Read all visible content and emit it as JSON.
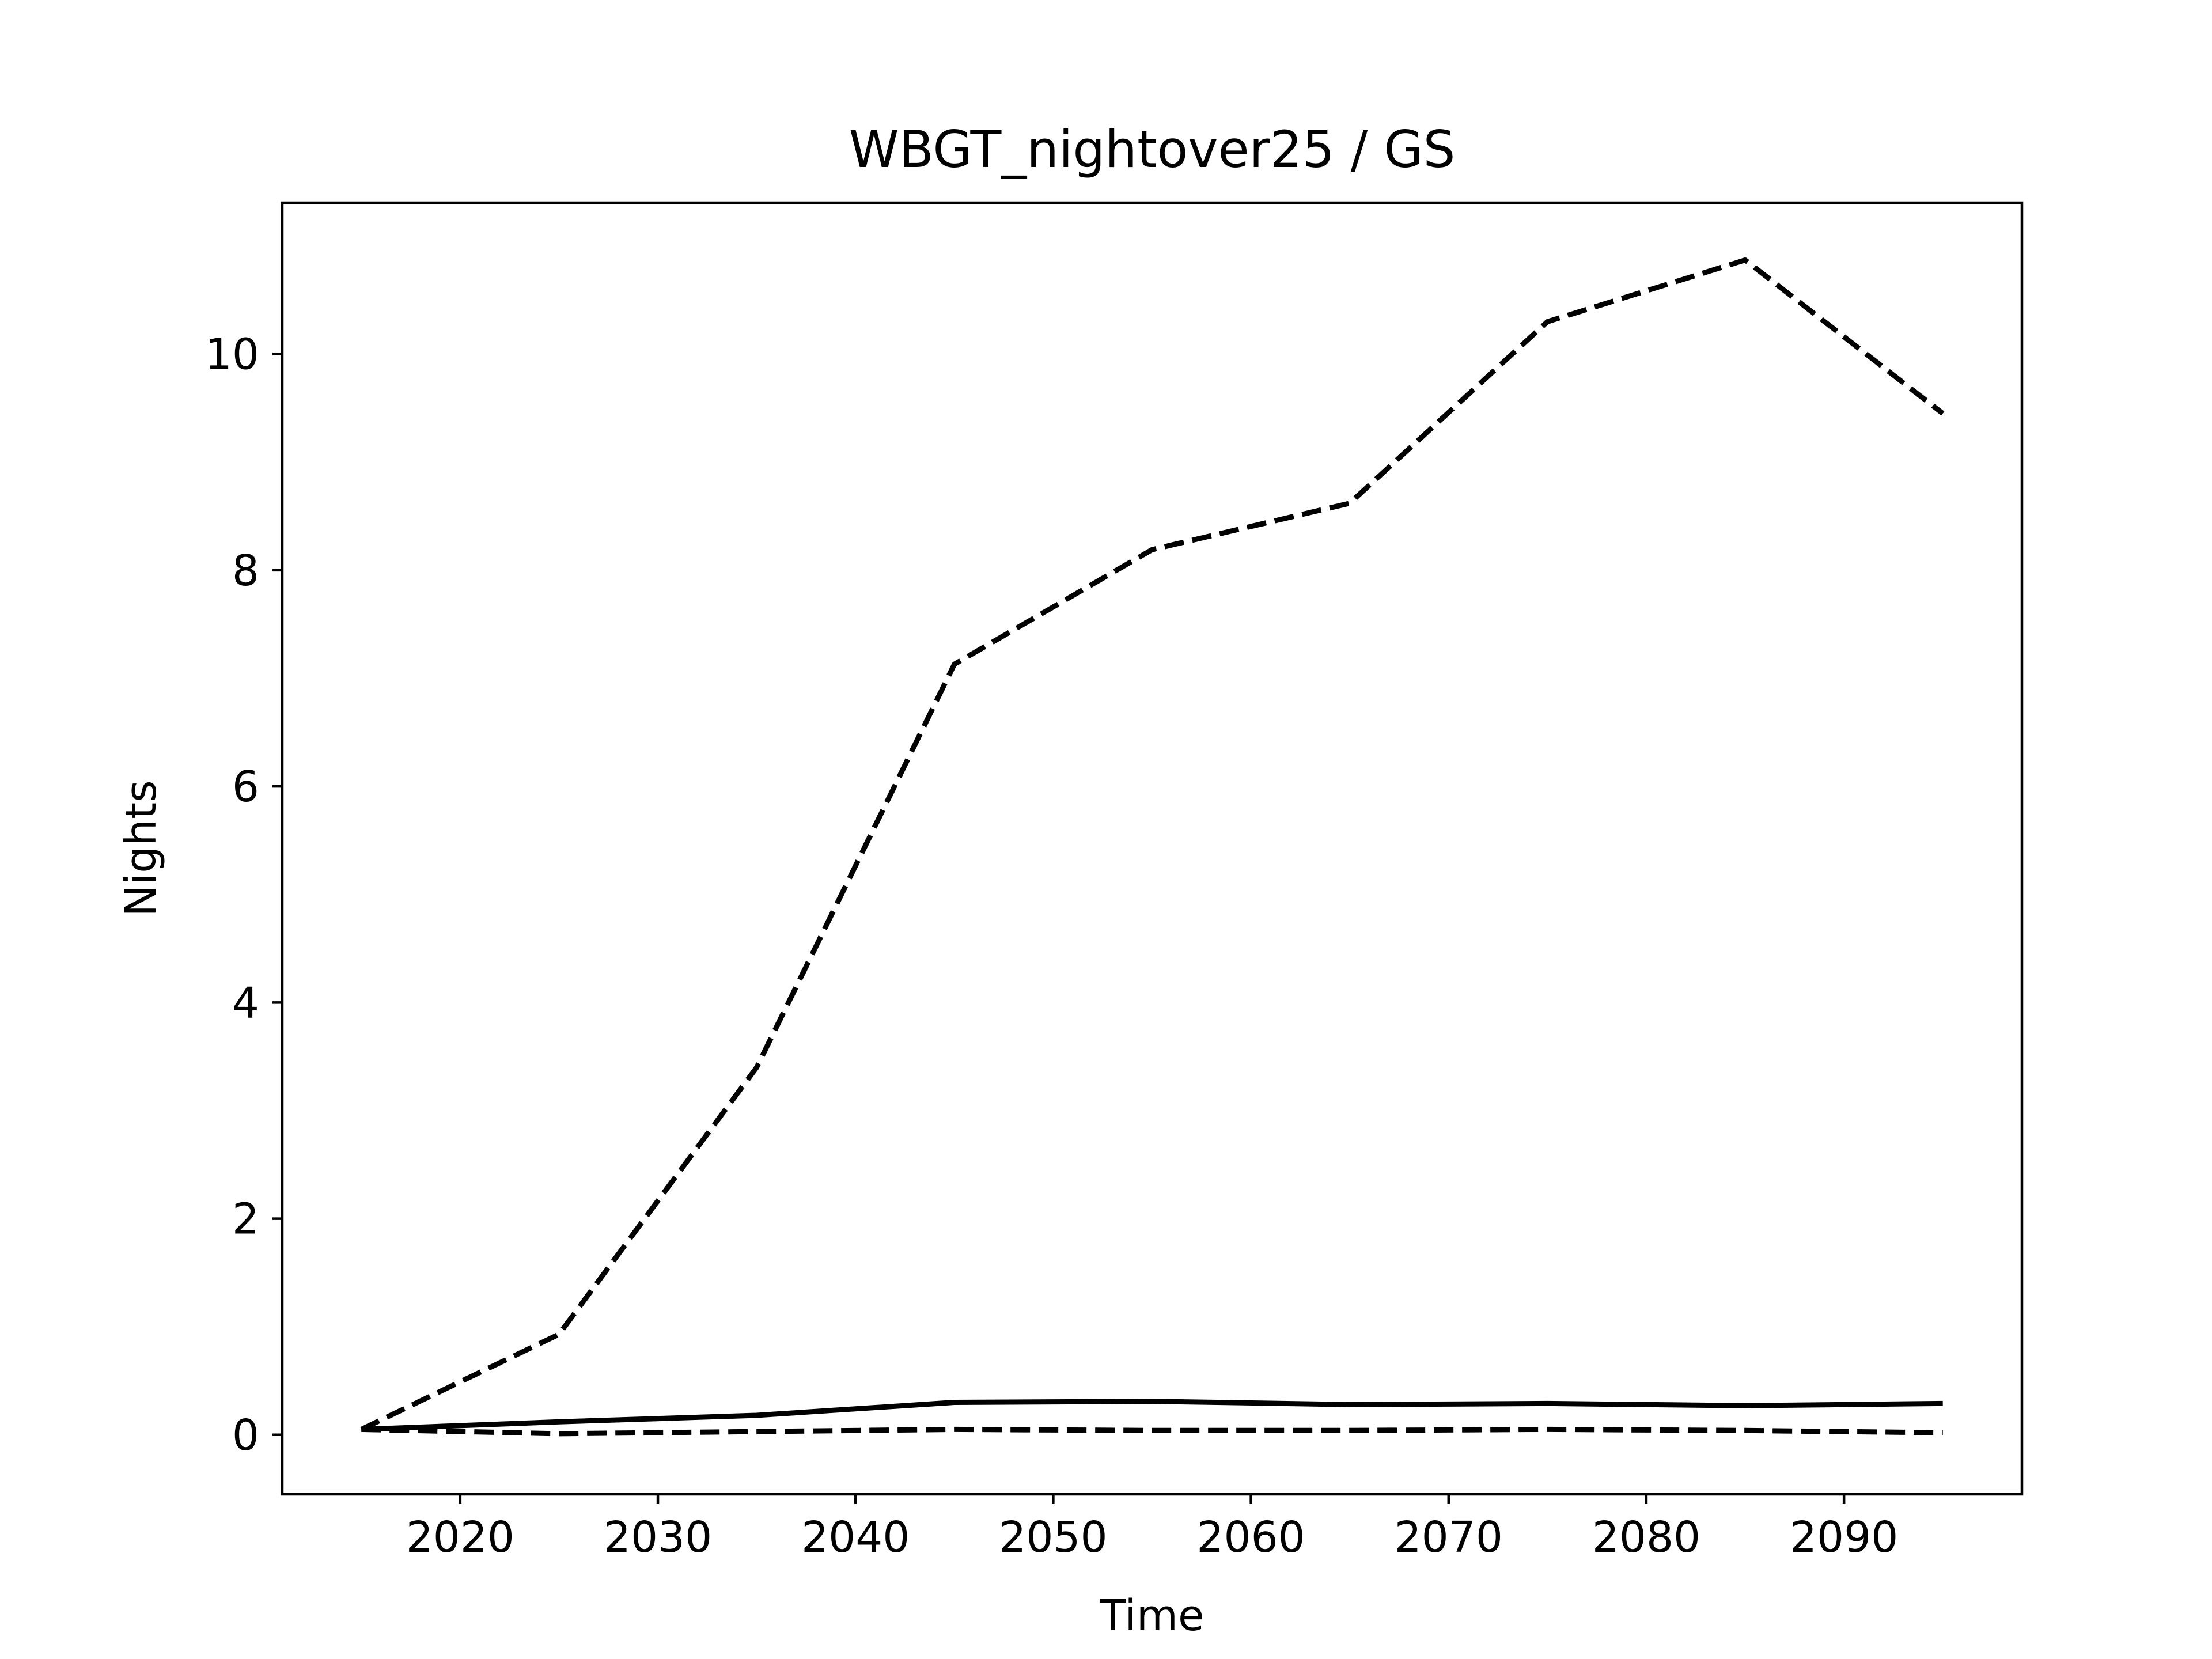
{
  "chart_data": {
    "type": "line",
    "title": "WBGT_nightover25 / GS",
    "xlabel": "Time",
    "ylabel": "Nights",
    "xlim": [
      2011,
      2099
    ],
    "ylim": [
      -0.55,
      11.4
    ],
    "xticks": [
      2020,
      2030,
      2040,
      2050,
      2060,
      2070,
      2080,
      2090
    ],
    "yticks": [
      0,
      2,
      4,
      6,
      8,
      10
    ],
    "grid": false,
    "legend": "none",
    "x": [
      2015,
      2025,
      2035,
      2045,
      2055,
      2065,
      2075,
      2085,
      2095
    ],
    "series": [
      {
        "style": "dashed",
        "color": "#000000",
        "values": [
          0.05,
          0.93,
          3.4,
          7.13,
          8.19,
          8.62,
          10.3,
          10.87,
          9.45
        ]
      },
      {
        "style": "solid",
        "color": "#000000",
        "values": [
          0.05,
          0.12,
          0.18,
          0.3,
          0.31,
          0.28,
          0.29,
          0.27,
          0.29
        ]
      },
      {
        "style": "dashed",
        "color": "#000000",
        "values": [
          0.05,
          0.01,
          0.03,
          0.05,
          0.04,
          0.04,
          0.05,
          0.04,
          0.02
        ]
      }
    ]
  }
}
